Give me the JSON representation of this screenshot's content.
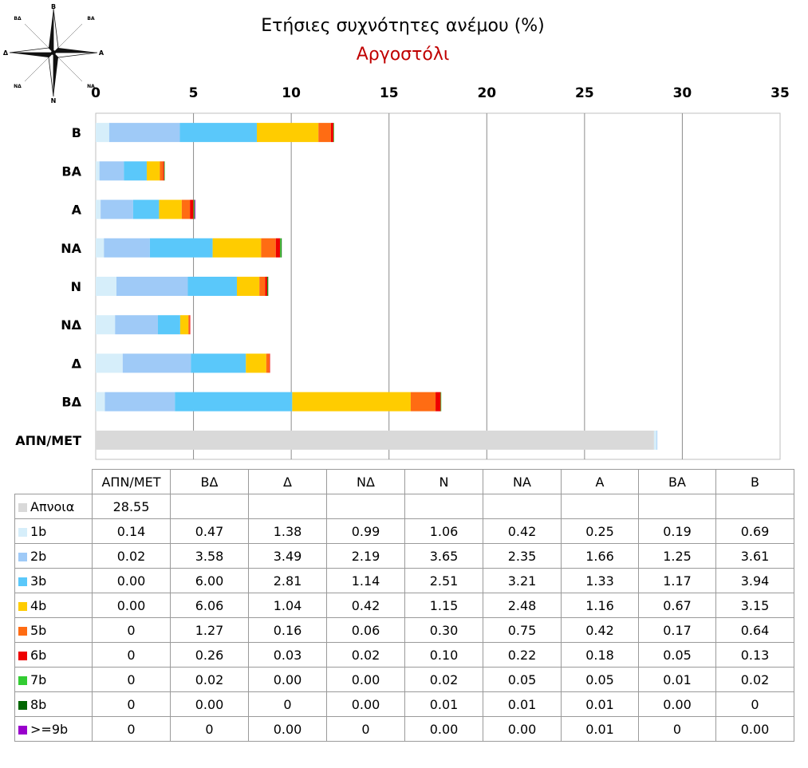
{
  "title": "Ετήσιες συχνότητες ανέμου (%)",
  "subtitle": "Αργοστόλι",
  "compass": {
    "north": "Β",
    "northeast": "ΒΑ",
    "east": "Α",
    "southeast": "ΝΑ",
    "south": "Ν",
    "southwest": "ΝΔ",
    "west": "Δ",
    "northwest": "ΒΔ"
  },
  "chart_data": {
    "type": "bar",
    "orientation": "horizontal",
    "stacked": true,
    "title": "Ετήσιες συχνότητες ανέμου (%)",
    "subtitle": "Αργοστόλι",
    "categories": [
      "Β",
      "ΒΑ",
      "Α",
      "ΝΑ",
      "Ν",
      "ΝΔ",
      "Δ",
      "ΒΔ",
      "ΑΠΝ/ΜΕΤ"
    ],
    "xlim": [
      0,
      35
    ],
    "xticks": [
      "0",
      "5",
      "10",
      "15",
      "20",
      "25",
      "30",
      "35"
    ],
    "xaxis_position": "top",
    "grid": true,
    "series": [
      {
        "name": "Απνοια",
        "color": "#d9d9d9",
        "values": [
          0,
          0,
          0,
          0,
          0,
          0,
          0,
          0,
          28.55
        ]
      },
      {
        "name": "1b",
        "color": "#d6eefa",
        "values": [
          0.69,
          0.19,
          0.25,
          0.42,
          1.06,
          0.99,
          1.38,
          0.47,
          0.14
        ]
      },
      {
        "name": "2b",
        "color": "#9fcaf7",
        "values": [
          3.61,
          1.25,
          1.66,
          2.35,
          3.65,
          2.19,
          3.49,
          3.58,
          0.02
        ]
      },
      {
        "name": "3b",
        "color": "#5ac8fa",
        "values": [
          3.94,
          1.17,
          1.33,
          3.21,
          2.51,
          1.14,
          2.81,
          6.0,
          0
        ]
      },
      {
        "name": "4b",
        "color": "#ffcc00",
        "values": [
          3.15,
          0.67,
          1.16,
          2.48,
          1.15,
          0.42,
          1.04,
          6.06,
          0
        ]
      },
      {
        "name": "5b",
        "color": "#ff6c13",
        "values": [
          0.64,
          0.17,
          0.42,
          0.75,
          0.3,
          0.06,
          0.16,
          1.27,
          0
        ]
      },
      {
        "name": "6b",
        "color": "#ee0000",
        "values": [
          0.13,
          0.05,
          0.18,
          0.22,
          0.1,
          0.02,
          0.03,
          0.26,
          0
        ]
      },
      {
        "name": "7b",
        "color": "#33cc33",
        "values": [
          0.02,
          0.01,
          0.05,
          0.05,
          0.02,
          0,
          0,
          0.02,
          0
        ]
      },
      {
        "name": "8b",
        "color": "#006600",
        "values": [
          0,
          0,
          0.01,
          0.01,
          0.01,
          0,
          0,
          0,
          0
        ]
      },
      {
        "name": ">=9b",
        "color": "#9900cc",
        "values": [
          0,
          0,
          0.01,
          0,
          0,
          0,
          0,
          0,
          0
        ]
      }
    ]
  },
  "table": {
    "headers": [
      "ΑΠΝ/ΜΕΤ",
      "ΒΔ",
      "Δ",
      "ΝΔ",
      "Ν",
      "ΝΑ",
      "Α",
      "ΒΑ",
      "Β"
    ],
    "rows": [
      {
        "label": "Απνοια",
        "color": "#d9d9d9",
        "cells": [
          "28.55",
          "",
          "",
          "",
          "",
          "",
          "",
          "",
          ""
        ]
      },
      {
        "label": "1b",
        "color": "#d6eefa",
        "cells": [
          "0.14",
          "0.47",
          "1.38",
          "0.99",
          "1.06",
          "0.42",
          "0.25",
          "0.19",
          "0.69"
        ]
      },
      {
        "label": "2b",
        "color": "#9fcaf7",
        "cells": [
          "0.02",
          "3.58",
          "3.49",
          "2.19",
          "3.65",
          "2.35",
          "1.66",
          "1.25",
          "3.61"
        ]
      },
      {
        "label": "3b",
        "color": "#5ac8fa",
        "cells": [
          "0.00",
          "6.00",
          "2.81",
          "1.14",
          "2.51",
          "3.21",
          "1.33",
          "1.17",
          "3.94"
        ]
      },
      {
        "label": "4b",
        "color": "#ffcc00",
        "cells": [
          "0.00",
          "6.06",
          "1.04",
          "0.42",
          "1.15",
          "2.48",
          "1.16",
          "0.67",
          "3.15"
        ]
      },
      {
        "label": "5b",
        "color": "#ff6c13",
        "cells": [
          "0",
          "1.27",
          "0.16",
          "0.06",
          "0.30",
          "0.75",
          "0.42",
          "0.17",
          "0.64"
        ]
      },
      {
        "label": "6b",
        "color": "#ee0000",
        "cells": [
          "0",
          "0.26",
          "0.03",
          "0.02",
          "0.10",
          "0.22",
          "0.18",
          "0.05",
          "0.13"
        ]
      },
      {
        "label": "7b",
        "color": "#33cc33",
        "cells": [
          "0",
          "0.02",
          "0.00",
          "0.00",
          "0.02",
          "0.05",
          "0.05",
          "0.01",
          "0.02"
        ]
      },
      {
        "label": "8b",
        "color": "#006600",
        "cells": [
          "0",
          "0.00",
          "0",
          "0.00",
          "0.01",
          "0.01",
          "0.01",
          "0.00",
          "0"
        ]
      },
      {
        "label": ">=9b",
        "color": "#9900cc",
        "cells": [
          "0",
          "0",
          "0.00",
          "0",
          "0.00",
          "0.00",
          "0.01",
          "0",
          "0.00"
        ]
      }
    ]
  }
}
